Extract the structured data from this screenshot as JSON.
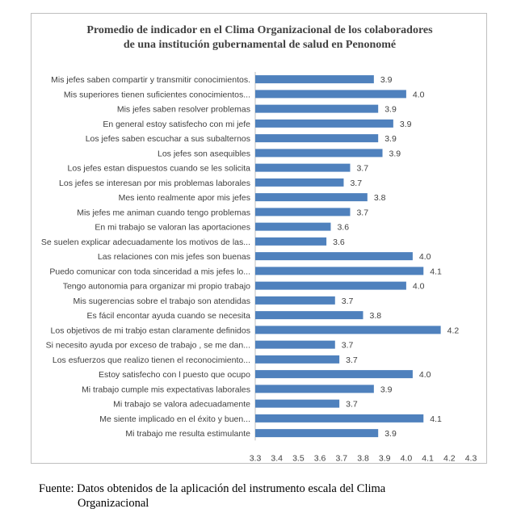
{
  "chart_data": {
    "type": "bar",
    "orientation": "horizontal",
    "title_line1": "Promedio de indicador en el Clima Organizacional de los colaboradores",
    "title_line2": "de una institución gubernamental de salud en Penonomé",
    "categories": [
      "Mis jefes saben compartir y transmitir conocimientos.",
      "Mis superiores tienen suficientes conocimientos...",
      "Mis jefes saben resolver problemas",
      "En general estoy satisfecho con mi jefe",
      "Los jefes saben escuchar a sus subalternos",
      "Los jefes son asequibles",
      "Los jefes estan dispuestos cuando se les solicita",
      "Los jefes se interesan por mis problemas laborales",
      "Mes iento realmente apor mis jefes",
      "Mis jefes me animan cuando tengo problemas",
      "En mi trabajo se valoran las aportaciones",
      "Se suelen explicar adecuadamente los motivos de las...",
      "Las relaciones con mis jefes son buenas",
      "Puedo comunicar con toda sinceridad a mis jefes  lo...",
      "Tengo autonomia para organizar mi propio trabajo",
      "Mis sugerencias sobre el trabajo son atendidas",
      "Es fácil encontar ayuda cuando se necesita",
      "Los objetivos de mi trabjo estan claramente definidos",
      "Si necesito ayuda por exceso de trabajo , se me dan...",
      "Los esfuerzos que realizo tienen el reconocimiento...",
      "Estoy satisfecho  con l puesto que ocupo",
      "Mi trabajo cumple mis expectativas laborales",
      "Mi trabajo se valora adecuadamente",
      "Me siente implicado en el éxito y buen...",
      "Mi trabajo me resulta estimulante"
    ],
    "values": [
      3.85,
      4.0,
      3.87,
      3.94,
      3.87,
      3.89,
      3.74,
      3.71,
      3.82,
      3.74,
      3.65,
      3.63,
      4.03,
      4.08,
      4.0,
      3.67,
      3.8,
      4.16,
      3.67,
      3.69,
      4.03,
      3.85,
      3.69,
      4.08,
      3.87
    ],
    "value_labels": [
      "3.9",
      "4.0",
      "3.9",
      "3.9",
      "3.9",
      "3.9",
      "3.7",
      "3.7",
      "3.8",
      "3.7",
      "3.6",
      "3.6",
      "4.0",
      "4.1",
      "4.0",
      "3.7",
      "3.8",
      "4.2",
      "3.7",
      "3.7",
      "4.0",
      "3.9",
      "3.7",
      "4.1",
      "3.9"
    ],
    "xlim": [
      3.3,
      4.3
    ],
    "xticks": [
      "3.3",
      "3.4",
      "3.5",
      "3.6",
      "3.7",
      "3.8",
      "3.9",
      "4.0",
      "4.1",
      "4.2",
      "4.3"
    ],
    "bar_color": "#4f81bd",
    "grid": false,
    "legend": "none"
  },
  "caption": {
    "line1": "Fuente: Datos obtenidos de la aplicación del instrumento escala del Clima",
    "line2": "Organizacional"
  }
}
